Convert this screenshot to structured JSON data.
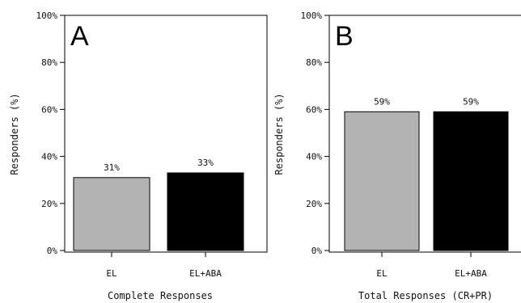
{
  "chart_data": [
    {
      "type": "bar",
      "panel_label": "A",
      "categories": [
        "EL",
        "EL+ABA"
      ],
      "values": [
        31,
        33
      ],
      "data_labels": [
        "31%",
        "33%"
      ],
      "colors": [
        "#b3b3b3",
        "#000000"
      ],
      "xlabel": "Complete Responses",
      "ylabel": "Responders (%)",
      "ylim": [
        0,
        100
      ],
      "yticks": [
        "0%",
        "20%",
        "40%",
        "60%",
        "80%",
        "100%"
      ],
      "grid": false
    },
    {
      "type": "bar",
      "panel_label": "B",
      "categories": [
        "EL",
        "EL+ABA"
      ],
      "values": [
        59,
        59
      ],
      "data_labels": [
        "59%",
        "59%"
      ],
      "colors": [
        "#b3b3b3",
        "#000000"
      ],
      "xlabel": "Total Responses (CR+PR)",
      "ylabel": "Responders (%)",
      "ylim": [
        0,
        100
      ],
      "yticks": [
        "0%",
        "20%",
        "40%",
        "60%",
        "80%",
        "100%"
      ],
      "grid": false
    }
  ]
}
